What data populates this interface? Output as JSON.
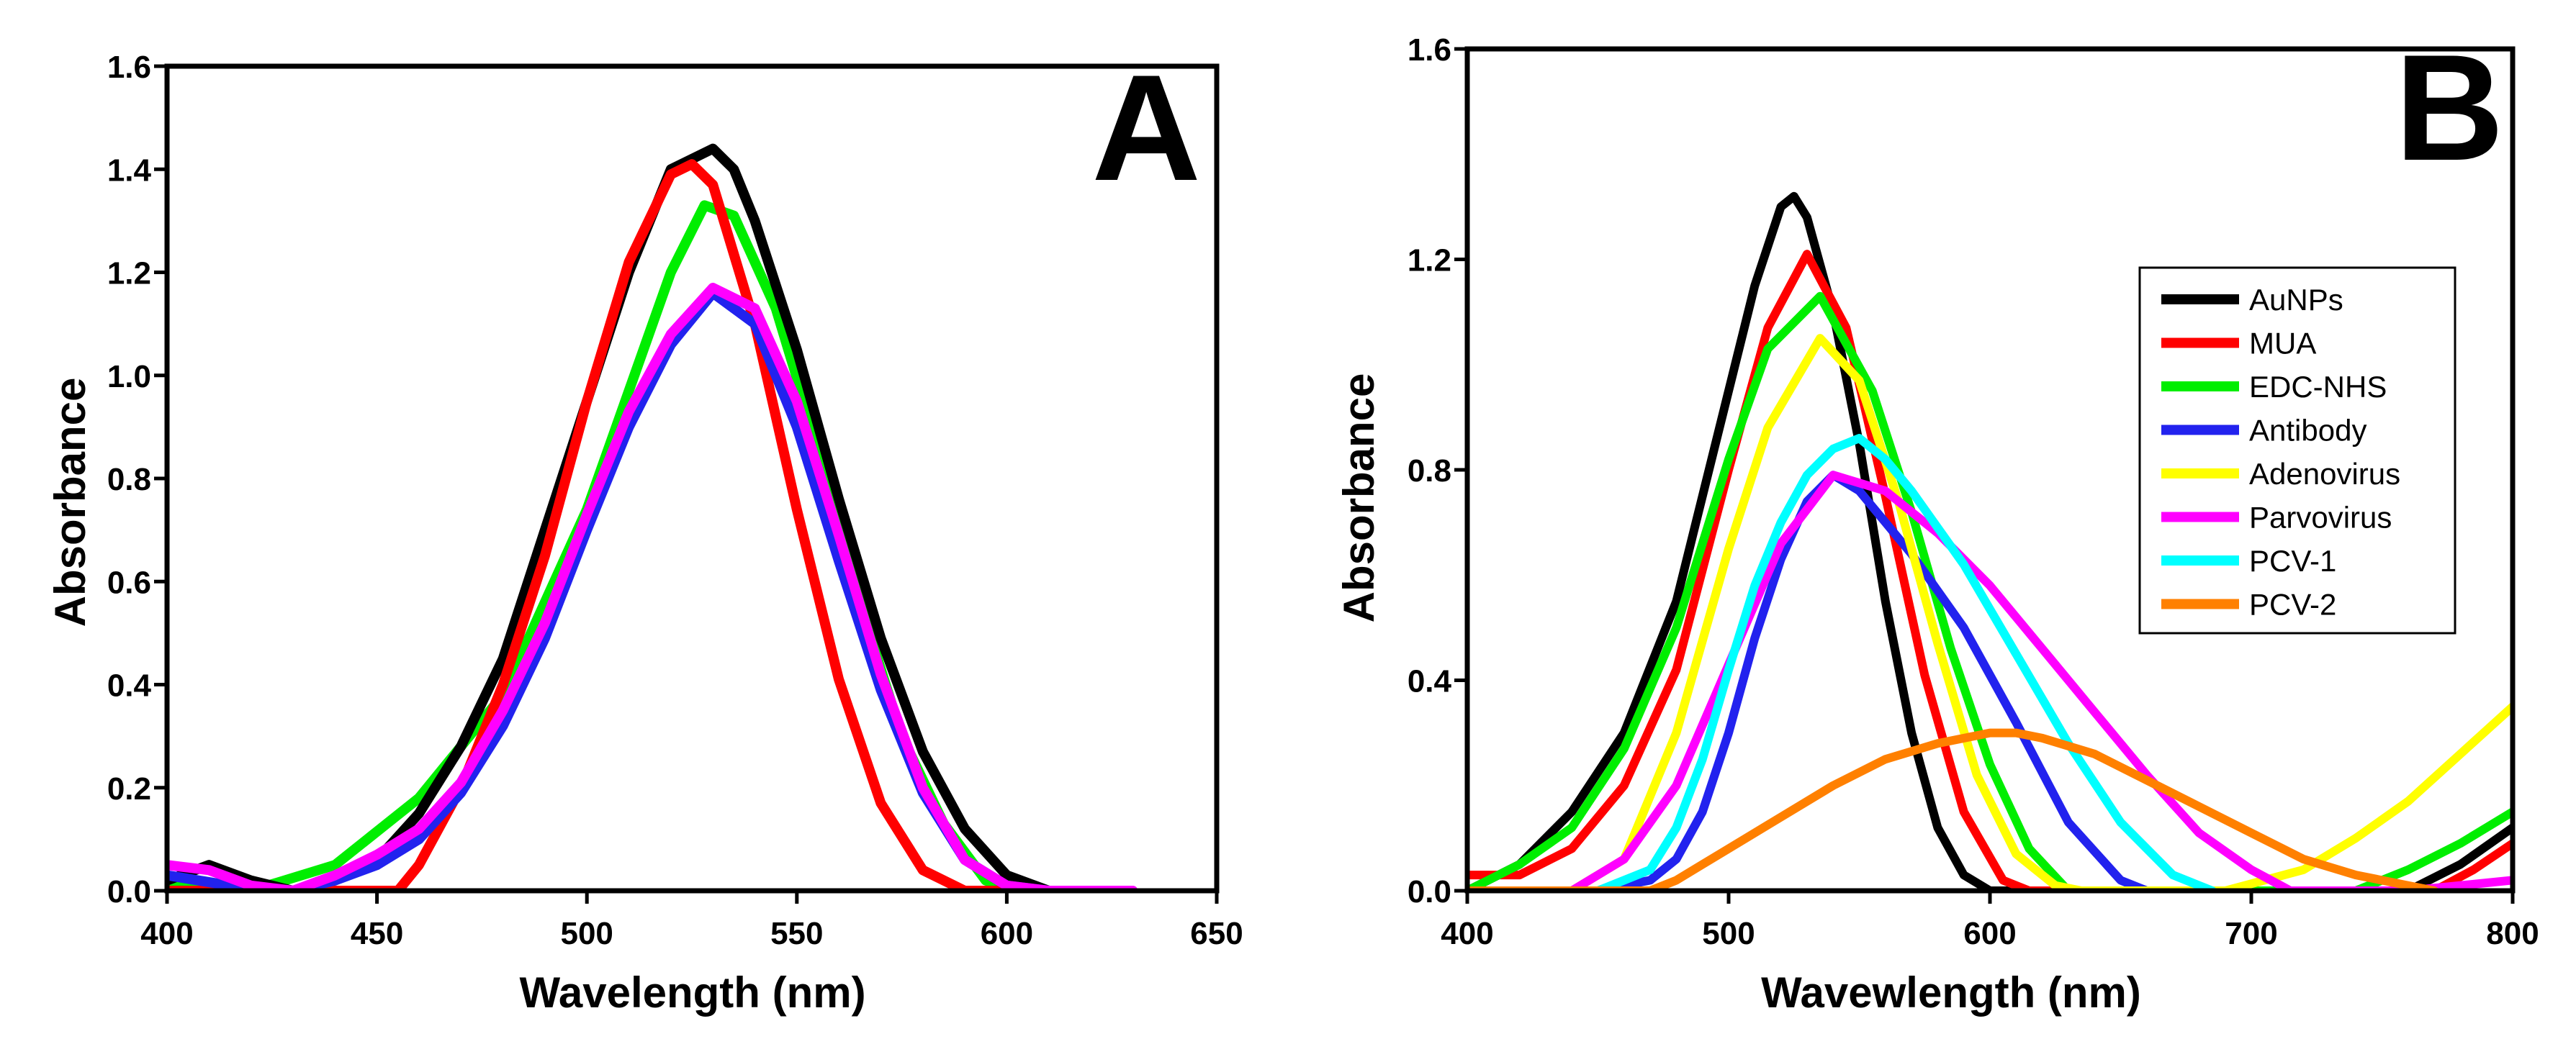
{
  "chart_data": [
    {
      "type": "line",
      "panel_label": "A",
      "xlabel": "Wavelength (nm)",
      "ylabel": "Absorbance",
      "xlim": [
        400,
        650
      ],
      "ylim": [
        0,
        1.6
      ],
      "xticks": [
        "400",
        "450",
        "500",
        "550",
        "600",
        "650"
      ],
      "yticks": [
        "0.0",
        "0.2",
        "0.4",
        "0.6",
        "0.8",
        "1.0",
        "1.2",
        "1.4",
        "1.6"
      ],
      "legend": false,
      "series": [
        {
          "name": "green",
          "color": "#00ee00",
          "x": [
            400,
            420,
            440,
            460,
            480,
            500,
            510,
            520,
            528,
            535,
            545,
            555,
            565,
            575,
            585,
            595,
            603,
            610
          ],
          "y": [
            0.01,
            0.0,
            0.05,
            0.18,
            0.38,
            0.74,
            0.97,
            1.2,
            1.33,
            1.31,
            1.13,
            0.86,
            0.56,
            0.3,
            0.13,
            0.02,
            0.0,
            0.0
          ]
        },
        {
          "name": "black",
          "color": "#000000",
          "x": [
            400,
            410,
            420,
            430,
            440,
            450,
            460,
            470,
            480,
            490,
            500,
            510,
            520,
            530,
            535,
            540,
            550,
            560,
            570,
            580,
            590,
            600,
            610,
            620
          ],
          "y": [
            0.02,
            0.05,
            0.02,
            0.0,
            0.02,
            0.06,
            0.15,
            0.28,
            0.45,
            0.7,
            0.95,
            1.2,
            1.4,
            1.44,
            1.4,
            1.3,
            1.05,
            0.76,
            0.49,
            0.27,
            0.12,
            0.03,
            0.0,
            0.0
          ]
        },
        {
          "name": "red",
          "color": "#ff0000",
          "x": [
            400,
            430,
            455,
            460,
            470,
            480,
            490,
            500,
            510,
            520,
            525,
            530,
            540,
            550,
            560,
            570,
            580,
            590,
            600,
            610
          ],
          "y": [
            0.0,
            0.0,
            0.0,
            0.05,
            0.2,
            0.4,
            0.65,
            0.95,
            1.22,
            1.39,
            1.41,
            1.37,
            1.1,
            0.74,
            0.41,
            0.17,
            0.04,
            0.0,
            0.0,
            0.0
          ]
        },
        {
          "name": "blue",
          "color": "#2222ee",
          "x": [
            400,
            415,
            430,
            440,
            450,
            460,
            470,
            480,
            490,
            500,
            510,
            520,
            530,
            540,
            550,
            560,
            570,
            580,
            590,
            600,
            610
          ],
          "y": [
            0.03,
            0.01,
            0.0,
            0.02,
            0.05,
            0.1,
            0.19,
            0.32,
            0.49,
            0.7,
            0.9,
            1.06,
            1.16,
            1.1,
            0.9,
            0.64,
            0.39,
            0.19,
            0.06,
            0.01,
            0.0
          ]
        },
        {
          "name": "magenta",
          "color": "#ff00ff",
          "x": [
            400,
            410,
            420,
            430,
            440,
            450,
            460,
            470,
            480,
            490,
            500,
            510,
            520,
            530,
            540,
            550,
            560,
            570,
            580,
            590,
            600,
            610,
            620,
            630
          ],
          "y": [
            0.05,
            0.04,
            0.01,
            0.0,
            0.03,
            0.07,
            0.12,
            0.21,
            0.35,
            0.52,
            0.73,
            0.93,
            1.08,
            1.17,
            1.13,
            0.95,
            0.69,
            0.42,
            0.2,
            0.06,
            0.01,
            0.0,
            0.0,
            0.0
          ]
        }
      ]
    },
    {
      "type": "line",
      "panel_label": "B",
      "xlabel": "Wavewlength (nm)",
      "ylabel": "Absorbance",
      "xlim": [
        400,
        800
      ],
      "ylim": [
        0,
        1.6
      ],
      "xticks": [
        "400",
        "500",
        "600",
        "700",
        "800"
      ],
      "yticks": [
        "0.0",
        "0.4",
        "0.8",
        "1.2",
        "1.6"
      ],
      "legend": true,
      "legend_position": "right",
      "series": [
        {
          "name": "AuNPs",
          "color": "#000000",
          "x": [
            400,
            420,
            440,
            460,
            480,
            500,
            510,
            520,
            525,
            530,
            540,
            550,
            560,
            570,
            580,
            590,
            600,
            620,
            700,
            760,
            780,
            800
          ],
          "y": [
            0.0,
            0.05,
            0.15,
            0.3,
            0.55,
            0.95,
            1.15,
            1.3,
            1.32,
            1.28,
            1.1,
            0.85,
            0.55,
            0.3,
            0.12,
            0.03,
            0.0,
            0.0,
            0.0,
            0.0,
            0.05,
            0.12
          ]
        },
        {
          "name": "MUA",
          "color": "#ff0000",
          "x": [
            400,
            420,
            440,
            460,
            480,
            500,
            515,
            530,
            545,
            560,
            575,
            590,
            605,
            615,
            700,
            770,
            785,
            800
          ],
          "y": [
            0.03,
            0.03,
            0.08,
            0.2,
            0.42,
            0.8,
            1.07,
            1.21,
            1.07,
            0.75,
            0.41,
            0.15,
            0.02,
            0.0,
            0.0,
            0.0,
            0.04,
            0.09
          ]
        },
        {
          "name": "EDC-NHS",
          "color": "#00ee00",
          "x": [
            400,
            420,
            440,
            460,
            480,
            500,
            515,
            535,
            555,
            570,
            585,
            600,
            615,
            630,
            700,
            740,
            760,
            780,
            800
          ],
          "y": [
            0.0,
            0.05,
            0.12,
            0.27,
            0.5,
            0.82,
            1.03,
            1.13,
            0.95,
            0.72,
            0.46,
            0.24,
            0.08,
            0.0,
            0.0,
            0.0,
            0.04,
            0.09,
            0.15
          ]
        },
        {
          "name": "Antibody",
          "color": "#2222ee",
          "x": [
            400,
            450,
            470,
            480,
            490,
            500,
            510,
            520,
            530,
            540,
            550,
            560,
            570,
            590,
            610,
            630,
            650,
            660
          ],
          "y": [
            0.0,
            0.0,
            0.02,
            0.06,
            0.15,
            0.3,
            0.48,
            0.63,
            0.74,
            0.79,
            0.76,
            0.7,
            0.64,
            0.5,
            0.32,
            0.13,
            0.02,
            0.0
          ]
        },
        {
          "name": "Adenovirus",
          "color": "#ffff00",
          "x": [
            400,
            440,
            460,
            480,
            500,
            515,
            535,
            550,
            565,
            580,
            595,
            610,
            625,
            635,
            690,
            720,
            740,
            760,
            780,
            800
          ],
          "y": [
            0.0,
            0.0,
            0.06,
            0.3,
            0.65,
            0.88,
            1.05,
            0.97,
            0.74,
            0.47,
            0.22,
            0.07,
            0.01,
            0.0,
            0.0,
            0.04,
            0.1,
            0.17,
            0.26,
            0.35
          ]
        },
        {
          "name": "Parvovirus",
          "color": "#ff00ff",
          "x": [
            400,
            440,
            460,
            480,
            500,
            520,
            540,
            560,
            580,
            600,
            620,
            640,
            660,
            680,
            700,
            715,
            760,
            800
          ],
          "y": [
            0.0,
            0.0,
            0.06,
            0.2,
            0.43,
            0.66,
            0.79,
            0.76,
            0.68,
            0.58,
            0.46,
            0.34,
            0.22,
            0.11,
            0.04,
            0.0,
            0.0,
            0.02
          ]
        },
        {
          "name": "PCV-1",
          "color": "#00ffff",
          "x": [
            400,
            450,
            470,
            480,
            490,
            500,
            510,
            520,
            530,
            540,
            550,
            560,
            570,
            590,
            610,
            630,
            650,
            670,
            685
          ],
          "y": [
            0.0,
            0.0,
            0.04,
            0.12,
            0.25,
            0.42,
            0.58,
            0.7,
            0.79,
            0.84,
            0.86,
            0.82,
            0.76,
            0.62,
            0.45,
            0.28,
            0.13,
            0.03,
            0.0
          ]
        },
        {
          "name": "PCV-2",
          "color": "#ff8000",
          "x": [
            400,
            470,
            480,
            490,
            500,
            520,
            540,
            560,
            580,
            600,
            610,
            620,
            640,
            660,
            680,
            700,
            720,
            740,
            760,
            770
          ],
          "y": [
            0.0,
            0.0,
            0.02,
            0.05,
            0.08,
            0.14,
            0.2,
            0.25,
            0.28,
            0.3,
            0.3,
            0.29,
            0.26,
            0.21,
            0.16,
            0.11,
            0.06,
            0.03,
            0.01,
            0.0
          ]
        }
      ]
    }
  ]
}
